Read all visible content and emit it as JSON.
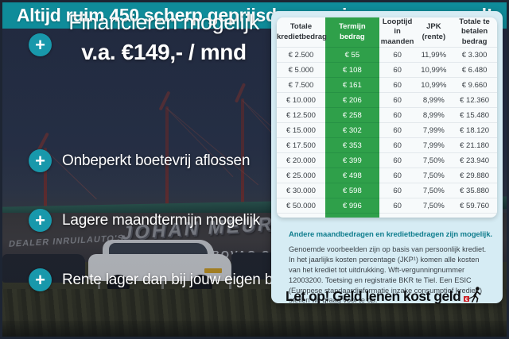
{
  "banner": {
    "text": "Altijd ruim 450 scherp geprijsde occasions op voorraad!"
  },
  "headline": {
    "line1": "Financieren mogelijk",
    "line2": "v.a. €149,- / mnd"
  },
  "bullets": [
    "Onbeperkt boetevrij aflossen",
    "Lagere maandtermijn mogelijk",
    "Rente lager dan bij jouw eigen bank"
  ],
  "icons": {
    "plus": "+"
  },
  "photo_signage": {
    "dealer_prefix": "DEALER INRUILAUTO'S",
    "dealer_name": "JOHAN MEURE",
    "sub_sign": "ALTIJD 450 BOVAG OCC SIONS"
  },
  "table": {
    "headers": [
      {
        "line1": "Totale",
        "line2": "kredietbedrag"
      },
      {
        "line1": "Termijn",
        "line2": "bedrag"
      },
      {
        "line1": "Looptijd",
        "line2": "in maanden"
      },
      {
        "line1": "JPK",
        "line2": "(rente)"
      },
      {
        "line1": "Totale te",
        "line2": "betalen bedrag"
      }
    ],
    "rows": [
      [
        "€ 2.500",
        "€ 55",
        "60",
        "11,99%",
        "€ 3.300"
      ],
      [
        "€ 5.000",
        "€ 108",
        "60",
        "10,99%",
        "€ 6.480"
      ],
      [
        "€ 7.500",
        "€ 161",
        "60",
        "10,99%",
        "€ 9.660"
      ],
      [
        "€ 10.000",
        "€ 206",
        "60",
        "8,99%",
        "€ 12.360"
      ],
      [
        "€ 12.500",
        "€ 258",
        "60",
        "8,99%",
        "€ 15.480"
      ],
      [
        "€ 15.000",
        "€ 302",
        "60",
        "7,99%",
        "€ 18.120"
      ],
      [
        "€ 17.500",
        "€ 353",
        "60",
        "7,99%",
        "€ 21.180"
      ],
      [
        "€ 20.000",
        "€ 399",
        "60",
        "7,50%",
        "€ 23.940"
      ],
      [
        "€ 25.000",
        "€ 498",
        "60",
        "7,50%",
        "€ 29.880"
      ],
      [
        "€ 30.000",
        "€ 598",
        "60",
        "7,50%",
        "€ 35.880"
      ],
      [
        "€ 50.000",
        "€ 996",
        "60",
        "7,50%",
        "€ 59.760"
      ]
    ]
  },
  "disclaimer": {
    "heading": "Andere maandbedragen en kredietbedragen zijn mogelijk.",
    "body": "Genoemde voorbeelden zijn op basis van persoonlijk krediet. In het jaarlijks kosten percentage (JKP¹) komen alle kosten van het krediet tot uitdrukking. Wft-vergunningnummer 12003200. Toetsing en registratie BKR te Tiel. Een ESIC (Europese standaardinformatie inzake consumptief krediet ) stellen wij graag voor je op.",
    "warning": "Let op! Geld lenen kost geld"
  },
  "colors": {
    "banner_teal": "#0f8c9a",
    "badge_teal": "#1898ab",
    "term_green": "#2fa04a",
    "card_blue": "#d6ecf4",
    "heading_teal": "#117e8e",
    "navy_bg": "#232c3d"
  }
}
